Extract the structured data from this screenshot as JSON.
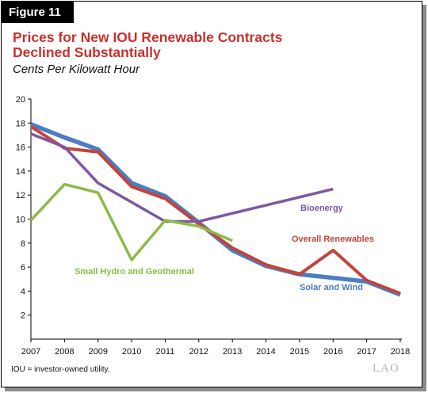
{
  "figure_label": "Figure 11",
  "title_line1": "Prices for New IOU Renewable Contracts",
  "title_line2": "Declined Substantially",
  "subtitle": "Cents Per Kilowatt Hour",
  "footnote": "IOU = investor-owned utility.",
  "logo_text": "LAO",
  "colors": {
    "title": "#c8312c",
    "solar_wind": "#4a7ec0",
    "overall": "#c4433d",
    "bioenergy": "#7e57a3",
    "hydro_geo": "#8bbb45"
  },
  "chart_data": {
    "type": "line",
    "x": [
      2007,
      2008,
      2009,
      2010,
      2011,
      2012,
      2013,
      2014,
      2015,
      2016,
      2017,
      2018
    ],
    "x_tick_labels": [
      "2007",
      "2008",
      "2009",
      "2010",
      "2011",
      "2012",
      "2013",
      "2014",
      "2015",
      "2016",
      "2017",
      "2018"
    ],
    "y_ticks": [
      2,
      4,
      6,
      8,
      10,
      12,
      14,
      16,
      18,
      20
    ],
    "ylim": [
      0,
      20
    ],
    "xlim": [
      2007,
      2018
    ],
    "grid": false,
    "series": [
      {
        "name": "Solar and Wind",
        "color": "#4a7ec0",
        "values": [
          17.9,
          16.8,
          15.8,
          13.0,
          11.9,
          9.7,
          7.4,
          6.1,
          5.4,
          5.1,
          4.8,
          3.7
        ]
      },
      {
        "name": "Overall Renewables",
        "color": "#c4433d",
        "values": [
          17.7,
          15.9,
          15.6,
          12.7,
          11.7,
          9.6,
          7.6,
          6.2,
          5.4,
          7.4,
          4.9,
          3.8
        ]
      },
      {
        "name": "Bioenergy",
        "color": "#7e57a3",
        "values": [
          17.1,
          16.0,
          13.0,
          null,
          9.8,
          9.8,
          null,
          null,
          null,
          12.5,
          null,
          null
        ]
      },
      {
        "name": "Small Hydro and Geothermal",
        "color": "#8bbb45",
        "values": [
          9.9,
          12.9,
          12.2,
          6.6,
          9.9,
          9.4,
          8.2,
          null,
          null,
          null,
          null,
          null
        ]
      }
    ]
  }
}
